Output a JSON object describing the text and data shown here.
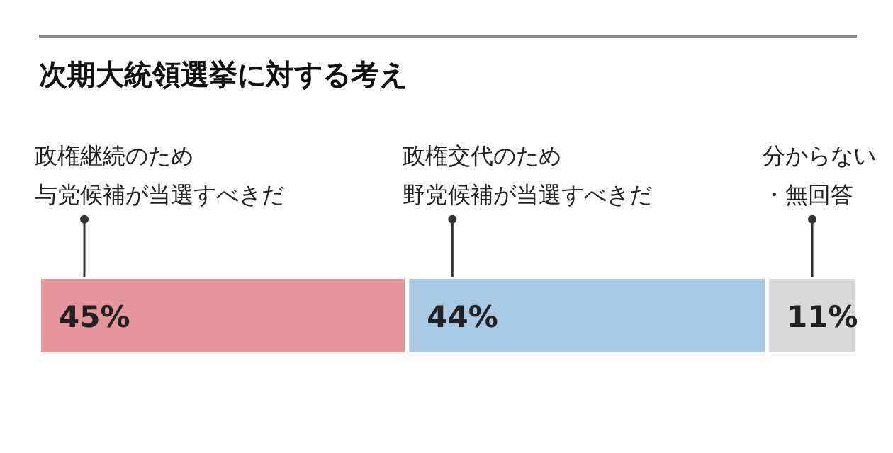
{
  "chart_data": {
    "type": "bar",
    "orientation": "horizontal",
    "stacked": true,
    "title": "次期大統領選挙に対する考え",
    "categories": [
      null
    ],
    "series": [
      {
        "name": "政権継続のため与党候補が当選すべきだ",
        "color": "#e6969a",
        "values": [
          45
        ],
        "value_labels": [
          "45%"
        ]
      },
      {
        "name": "政権交代のため野党候補が当選すべきだ",
        "color": "#a7c9e3",
        "values": [
          44
        ],
        "value_labels": [
          "44%"
        ]
      },
      {
        "name": "分からない・無回答",
        "color": "#d9d9d9",
        "values": [
          11
        ],
        "value_labels": [
          "11%"
        ]
      }
    ]
  }
}
